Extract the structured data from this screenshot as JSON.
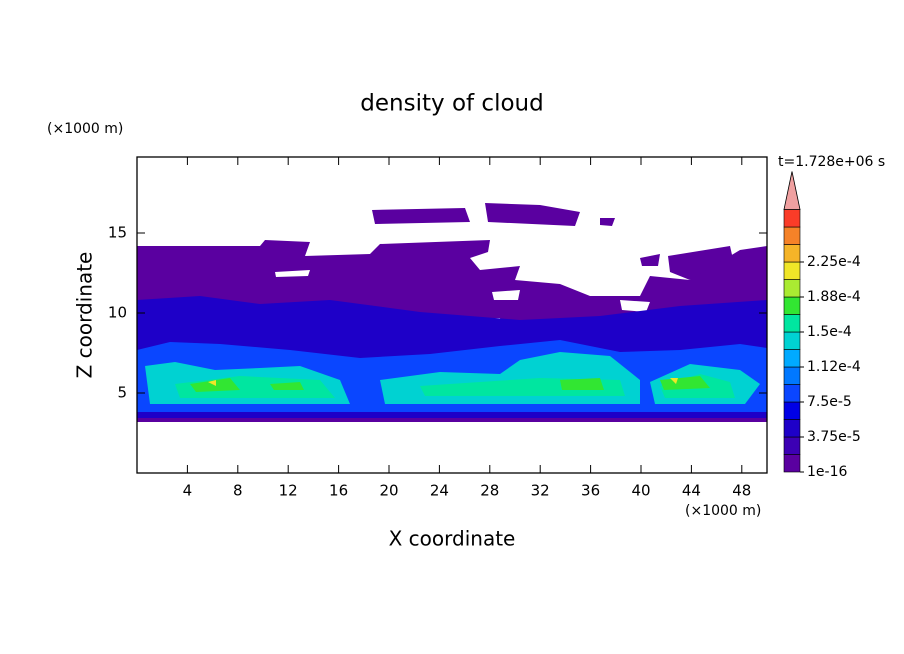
{
  "chart_data": {
    "type": "contour",
    "title": "density of cloud",
    "xlabel": "X coordinate",
    "ylabel": "Z coordinate",
    "xunit": "(×1000 m)",
    "yunit": "(×1000 m)",
    "time_label": "t=1.728e+06 s",
    "xlim": [
      0,
      50
    ],
    "ylim": [
      0,
      19.75
    ],
    "xticks": [
      4,
      8,
      12,
      16,
      20,
      24,
      28,
      32,
      36,
      40,
      44,
      48
    ],
    "yticks": [
      5,
      10,
      15
    ],
    "colorbar": {
      "colors": [
        "#5a00a0",
        "#3c00b4",
        "#1e00c8",
        "#0000e6",
        "#0a46ff",
        "#0078ff",
        "#00aaff",
        "#00d2d2",
        "#00e6a0",
        "#32e632",
        "#aaeb32",
        "#f0e628",
        "#f5b428",
        "#f58228",
        "#fa3c28",
        "#f0a0a0"
      ],
      "levels": [
        {
          "value": 1e-16,
          "label": "1e-16"
        },
        {
          "value": 3.75e-05,
          "label": "3.75e-5"
        },
        {
          "value": 7.5e-05,
          "label": "7.5e-5"
        },
        {
          "value": 0.000112,
          "label": "1.12e-4"
        },
        {
          "value": 0.00015,
          "label": "1.5e-4"
        },
        {
          "value": 0.000188,
          "label": "1.88e-4"
        },
        {
          "value": 0.000225,
          "label": "2.25e-4"
        }
      ]
    }
  }
}
